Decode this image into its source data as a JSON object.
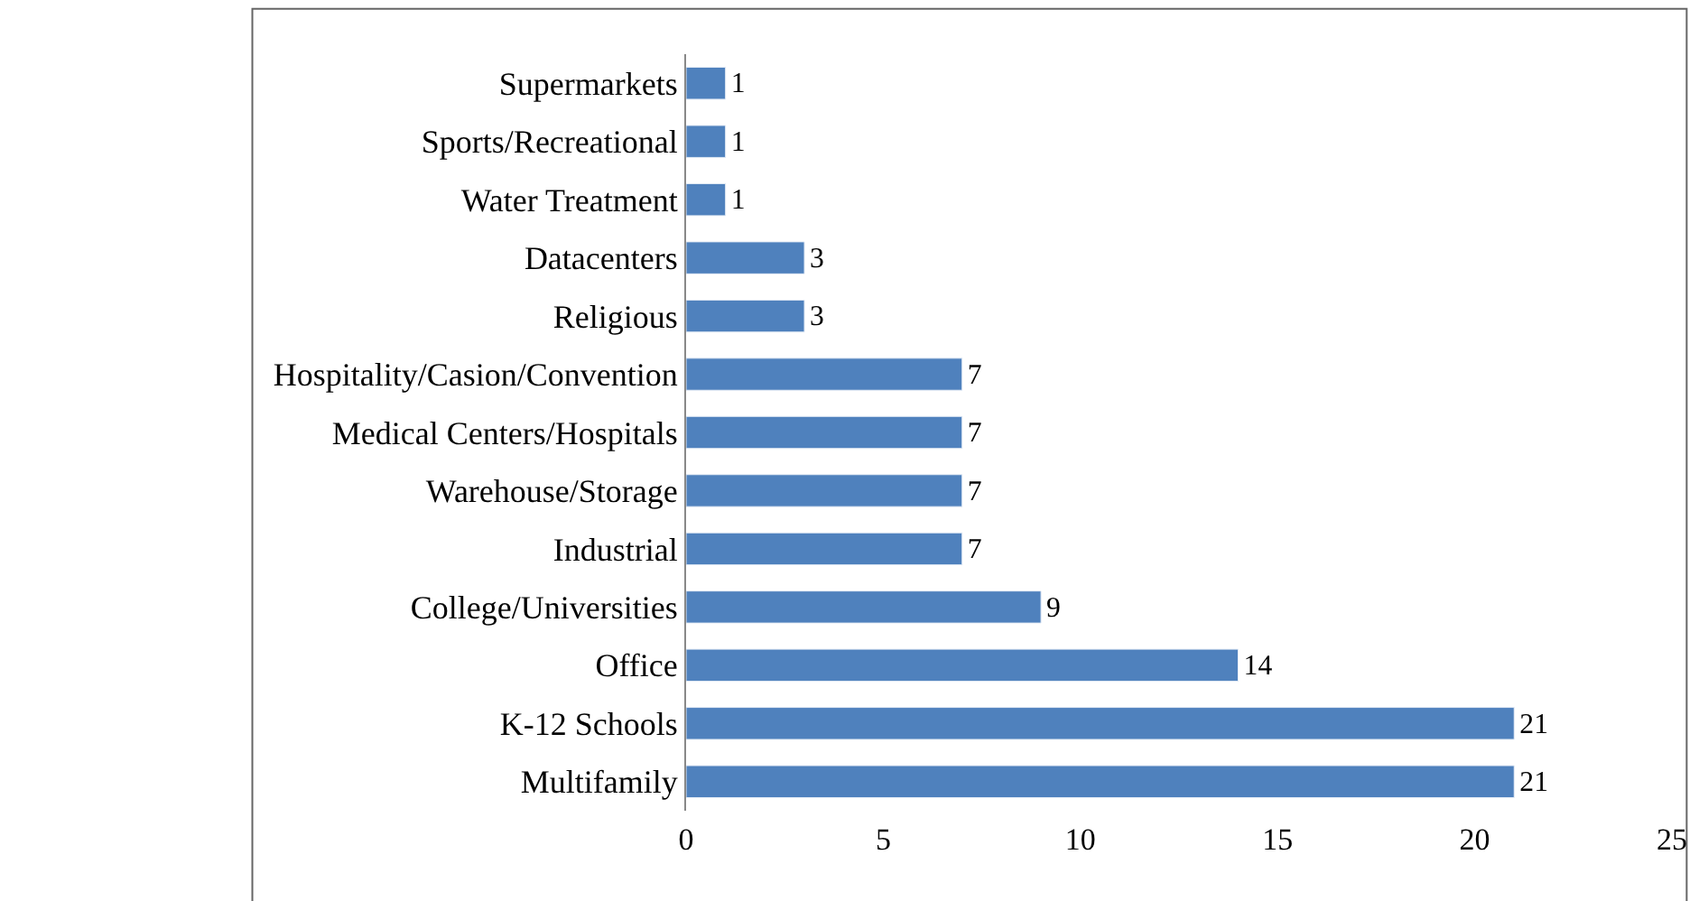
{
  "chart_data": {
    "type": "bar",
    "orientation": "horizontal",
    "categories": [
      "Supermarkets",
      "Sports/Recreational",
      "Water Treatment",
      "Datacenters",
      "Religious",
      "Hospitality/Casion/Convention",
      "Medical Centers/Hospitals",
      "Warehouse/Storage",
      "Industrial",
      "College/Universities",
      "Office",
      "K-12 Schools",
      "Multifamily"
    ],
    "values": [
      1,
      1,
      1,
      3,
      3,
      7,
      7,
      7,
      7,
      9,
      14,
      21,
      21
    ],
    "color": "#4f81bd",
    "xlim": [
      0,
      25
    ],
    "xticks": [
      0,
      5,
      10,
      15,
      20,
      25
    ],
    "data_labels": true
  }
}
